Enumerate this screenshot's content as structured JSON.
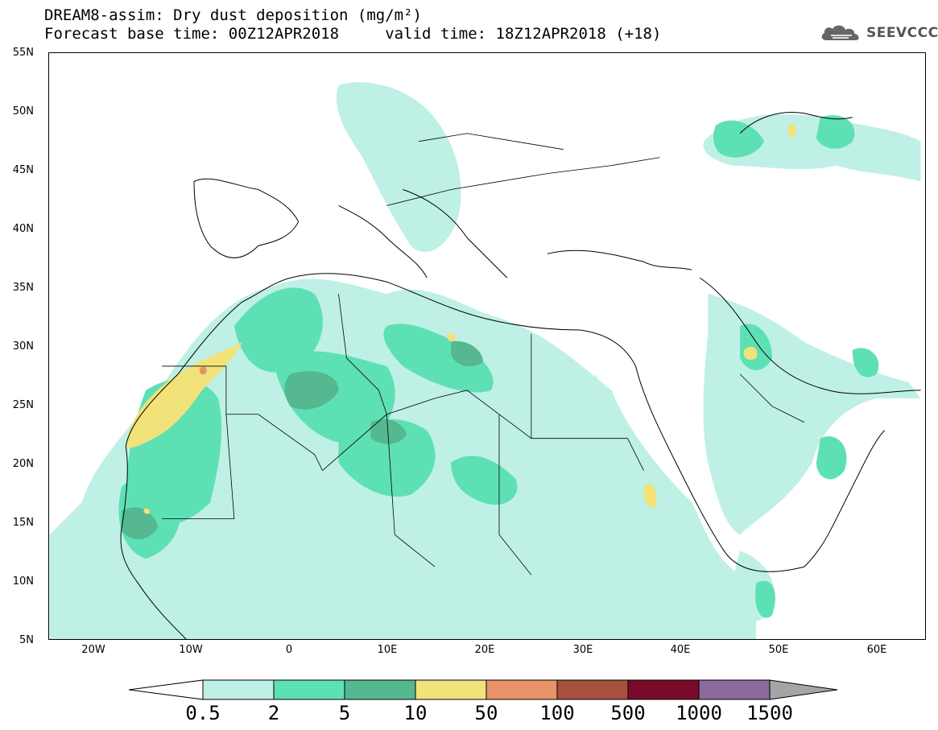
{
  "header": {
    "title_line1": "DREAM8-assim: Dry dust deposition (mg/m²)",
    "title_line2": "Forecast base time: 00Z12APR2018     valid time: 18Z12APR2018 (+18)",
    "logo_text": "SEEVCCC"
  },
  "axes": {
    "latitude_labels": [
      "55N",
      "50N",
      "45N",
      "40N",
      "35N",
      "30N",
      "25N",
      "20N",
      "15N",
      "10N",
      "5N"
    ],
    "longitude_labels": [
      "20W",
      "10W",
      "0",
      "10E",
      "20E",
      "30E",
      "40E",
      "50E",
      "60E"
    ]
  },
  "colorbar": {
    "labels": [
      "0.5",
      "2",
      "5",
      "10",
      "50",
      "100",
      "500",
      "1000",
      "1500"
    ],
    "colors": [
      "#bff0e6",
      "#5ee0b5",
      "#55b890",
      "#f2e27a",
      "#e8936a",
      "#a8503e",
      "#7a0a2a",
      "#8b6a9e",
      "#a5a5a5"
    ]
  },
  "map": {
    "border_color": "#000000",
    "coast_color": "#000000",
    "dust_light": "#bff0e6",
    "dust_medium": "#5ee0b5",
    "dust_dark": "#55b890",
    "dust_yellow": "#f2e27a",
    "dust_red": "#e8936a"
  }
}
